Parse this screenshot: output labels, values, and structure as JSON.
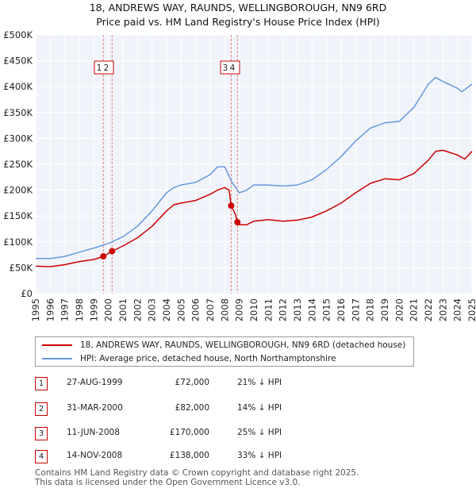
{
  "header": {
    "title_line1": "18, ANDREWS WAY, RAUNDS, WELLINGBOROUGH, NN9 6RD",
    "title_line2": "Price paid vs. HM Land Registry's House Price Index (HPI)"
  },
  "chart_data": {
    "type": "line",
    "title": "18, ANDREWS WAY, RAUNDS, WELLINGBOROUGH, NN9 6RD",
    "subtitle": "Price paid vs. HM Land Registry's House Price Index (HPI)",
    "xlim": [
      1995,
      2025
    ],
    "ylim": [
      0,
      500000
    ],
    "y_ticks": [
      0,
      50000,
      100000,
      150000,
      200000,
      250000,
      300000,
      350000,
      400000,
      450000,
      500000
    ],
    "y_tick_labels": [
      "£0",
      "£50K",
      "£100K",
      "£150K",
      "£200K",
      "£250K",
      "£300K",
      "£350K",
      "£400K",
      "£450K",
      "£500K"
    ],
    "x_ticks": [
      1995,
      1996,
      1997,
      1998,
      1999,
      2000,
      2001,
      2002,
      2003,
      2004,
      2005,
      2006,
      2007,
      2008,
      2009,
      2010,
      2011,
      2012,
      2013,
      2014,
      2015,
      2016,
      2017,
      2018,
      2019,
      2020,
      2021,
      2022,
      2023,
      2024,
      2025
    ],
    "x_tick_labels": [
      "1995",
      "1996",
      "1997",
      "1998",
      "1999",
      "2000",
      "2001",
      "2002",
      "2003",
      "2004",
      "2005",
      "2006",
      "2007",
      "2008",
      "2009",
      "2010",
      "2011",
      "2012",
      "2013",
      "2014",
      "2015",
      "2016",
      "2017",
      "2018",
      "2019",
      "2020",
      "2021",
      "2022",
      "2023",
      "2024",
      "2025"
    ],
    "grid": true,
    "series": [
      {
        "name": "18, ANDREWS WAY, RAUNDS, WELLINGBOROUGH, NN9 6RD (detached house)",
        "color": "#cc0000",
        "x": [
          1995.0,
          1996.0,
          1997.0,
          1998.0,
          1999.0,
          1999.65,
          2000.25,
          2001.0,
          2002.0,
          2003.0,
          2004.0,
          2004.5,
          2005.0,
          2006.0,
          2007.0,
          2007.5,
          2008.0,
          2008.3,
          2008.44,
          2008.7,
          2008.87,
          2009.0,
          2009.5,
          2010.0,
          2011.0,
          2012.0,
          2013.0,
          2014.0,
          2015.0,
          2016.0,
          2017.0,
          2018.0,
          2019.0,
          2020.0,
          2021.0,
          2022.0,
          2022.5,
          2023.0,
          2024.0,
          2024.5,
          2025.0
        ],
        "values": [
          53000,
          52000,
          56000,
          62000,
          66000,
          72000,
          82000,
          92000,
          108000,
          130000,
          160000,
          172000,
          175000,
          180000,
          192000,
          200000,
          205000,
          200000,
          170000,
          155000,
          138000,
          133000,
          133000,
          140000,
          143000,
          140000,
          142000,
          148000,
          160000,
          175000,
          195000,
          213000,
          222000,
          220000,
          232000,
          258000,
          275000,
          277000,
          268000,
          260000,
          275000
        ]
      },
      {
        "name": "HPI: Average price, detached house, North Northamptonshire",
        "color": "#6699dd",
        "x": [
          1995.0,
          1996.0,
          1997.0,
          1998.0,
          1999.0,
          2000.0,
          2001.0,
          2002.0,
          2003.0,
          2004.0,
          2004.5,
          2005.0,
          2006.0,
          2007.0,
          2007.5,
          2008.0,
          2008.5,
          2009.0,
          2009.5,
          2010.0,
          2011.0,
          2012.0,
          2013.0,
          2014.0,
          2015.0,
          2016.0,
          2017.0,
          2018.0,
          2019.0,
          2020.0,
          2021.0,
          2022.0,
          2022.5,
          2023.0,
          2024.0,
          2024.3,
          2025.0
        ],
        "values": [
          68000,
          68000,
          72000,
          80000,
          88000,
          97000,
          110000,
          130000,
          160000,
          195000,
          205000,
          210000,
          215000,
          230000,
          245000,
          245000,
          215000,
          195000,
          200000,
          210000,
          210000,
          208000,
          210000,
          220000,
          240000,
          265000,
          295000,
          320000,
          330000,
          333000,
          360000,
          405000,
          418000,
          410000,
          397000,
          390000,
          405000
        ]
      }
    ],
    "transactions": [
      {
        "id": "1",
        "x": 1999.65,
        "value": 72000
      },
      {
        "id": "2",
        "x": 2000.25,
        "value": 82000
      },
      {
        "id": "3",
        "x": 2008.44,
        "value": 170000
      },
      {
        "id": "4",
        "x": 2008.87,
        "value": 138000
      }
    ]
  },
  "legend": {
    "items": [
      {
        "label": "18, ANDREWS WAY, RAUNDS, WELLINGBOROUGH, NN9 6RD (detached house)",
        "color": "#cc0000"
      },
      {
        "label": "HPI: Average price, detached house, North Northamptonshire",
        "color": "#6699dd"
      }
    ]
  },
  "table": {
    "rows": [
      {
        "id": "1",
        "date": "27-AUG-1999",
        "price": "£72,000",
        "hpi": "21% ↓ HPI"
      },
      {
        "id": "2",
        "date": "31-MAR-2000",
        "price": "£82,000",
        "hpi": "14% ↓ HPI"
      },
      {
        "id": "3",
        "date": "11-JUN-2008",
        "price": "£170,000",
        "hpi": "25% ↓ HPI"
      },
      {
        "id": "4",
        "date": "14-NOV-2008",
        "price": "£138,000",
        "hpi": "33% ↓ HPI"
      }
    ]
  },
  "footer": {
    "line1": "Contains HM Land Registry data © Crown copyright and database right 2025.",
    "line2": "This data is licensed under the Open Government Licence v3.0."
  }
}
